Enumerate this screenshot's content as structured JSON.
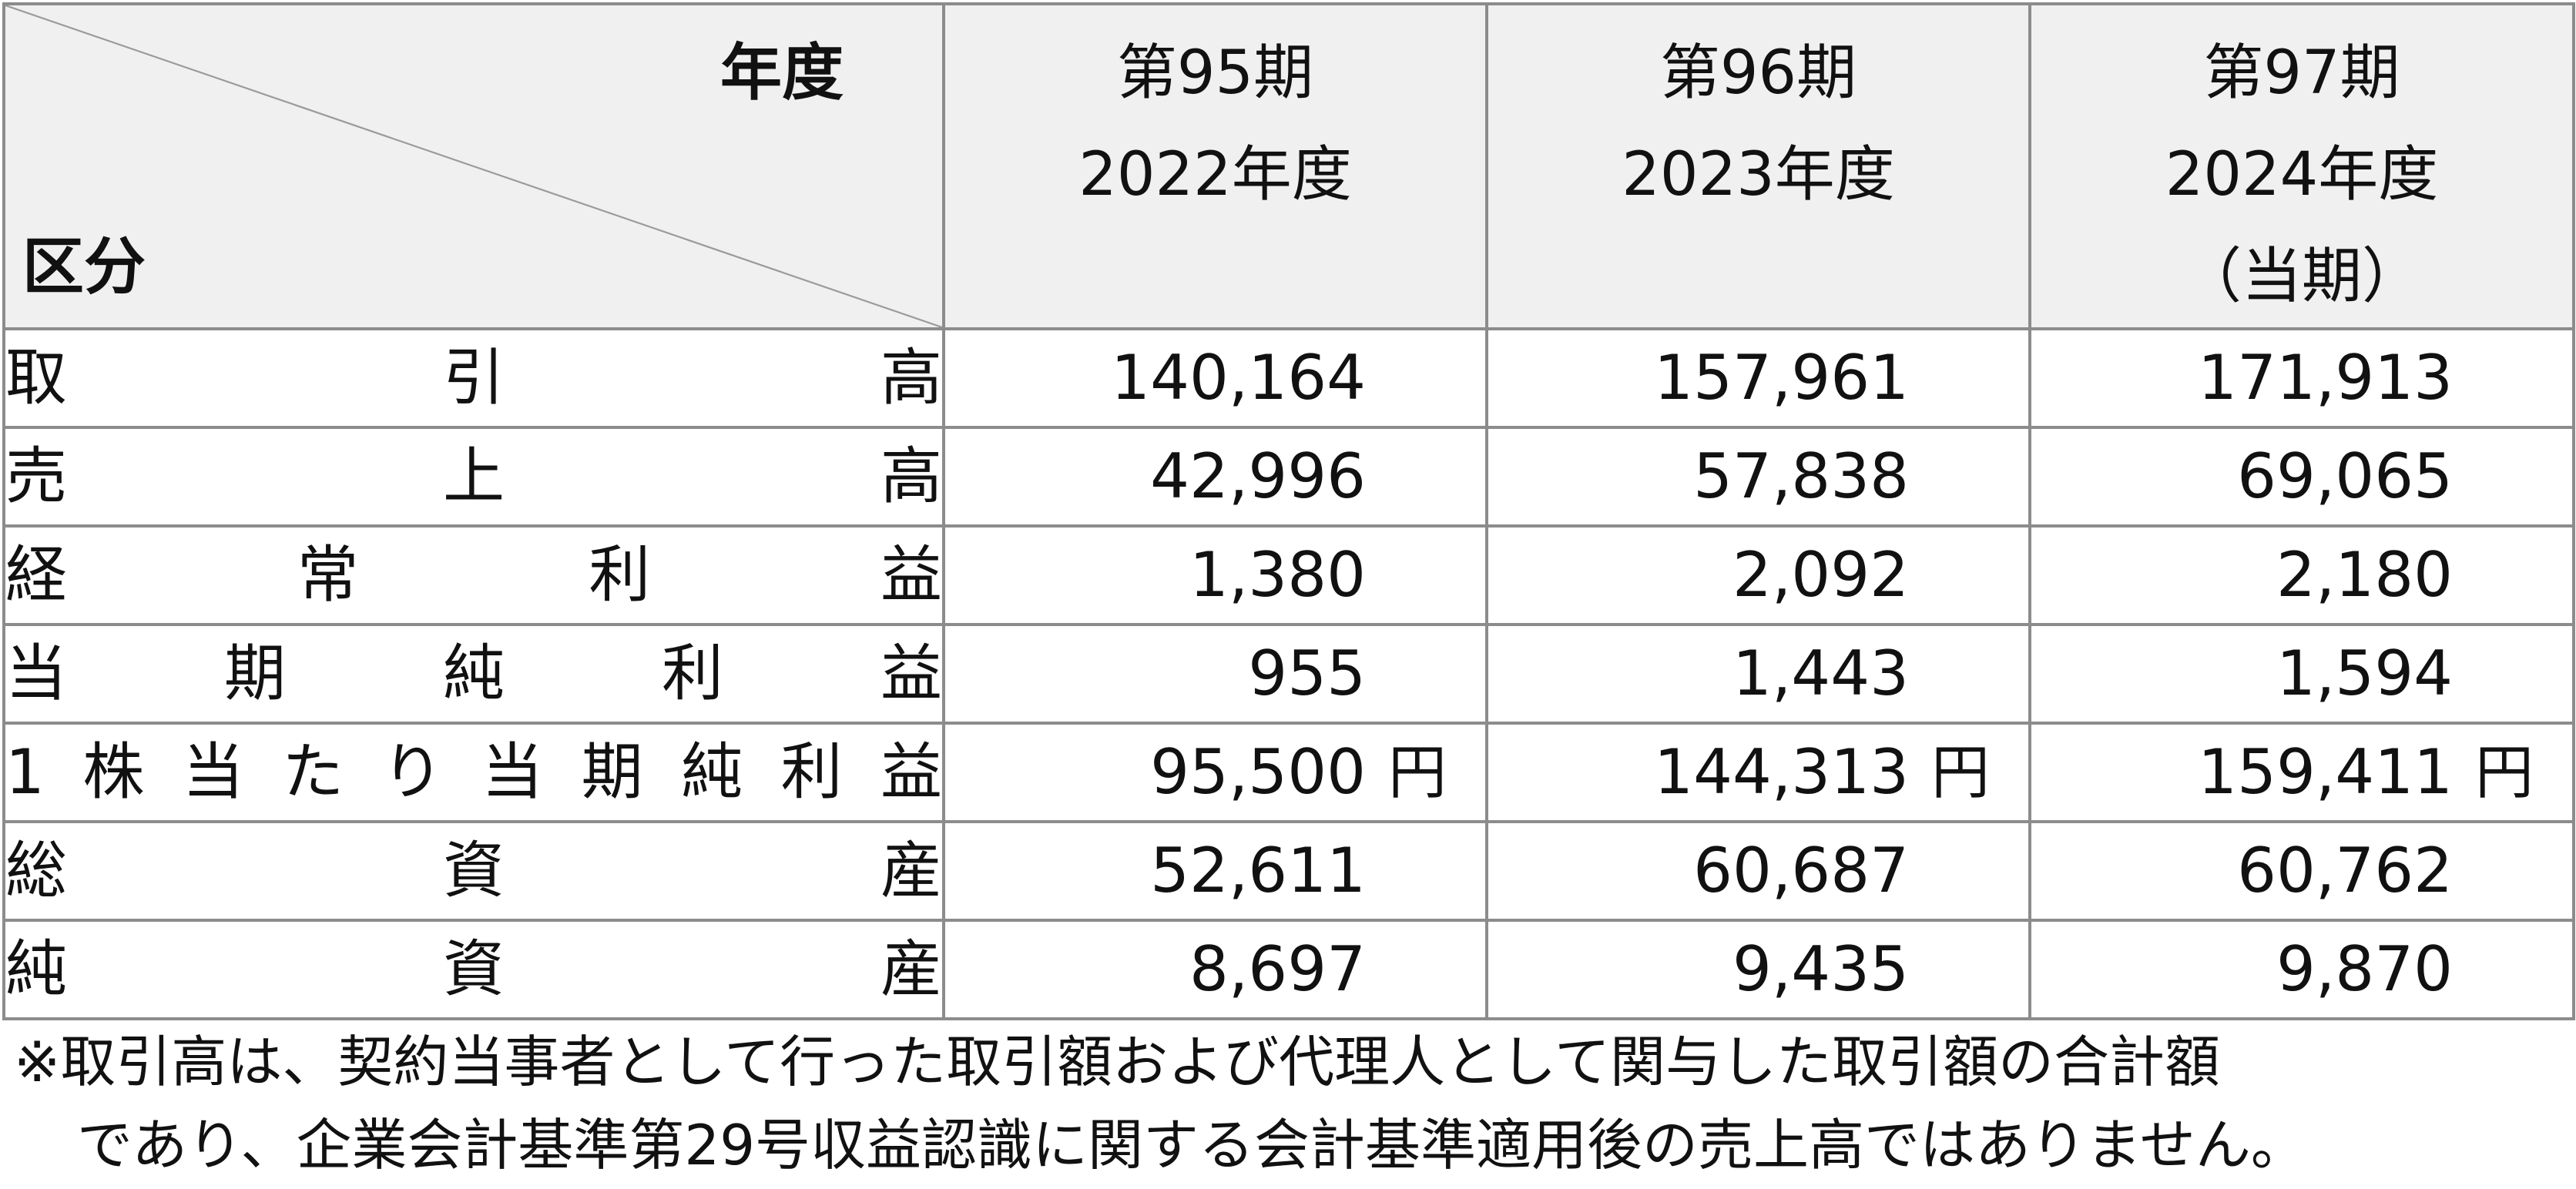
{
  "header": {
    "corner_top": "年度",
    "corner_bottom": "区分",
    "periods": [
      {
        "term": "第95期",
        "year": "2022年度",
        "note": ""
      },
      {
        "term": "第96期",
        "year": "2023年度",
        "note": ""
      },
      {
        "term": "第97期",
        "year": "2024年度",
        "note": "（当期）"
      }
    ]
  },
  "rows": [
    {
      "label": "取引高",
      "values": [
        "140,164",
        "157,961",
        "171,913"
      ],
      "unit": ""
    },
    {
      "label": "売上高",
      "values": [
        "42,996",
        "57,838",
        "69,065"
      ],
      "unit": ""
    },
    {
      "label": "経常利益",
      "values": [
        "1,380",
        "2,092",
        "2,180"
      ],
      "unit": ""
    },
    {
      "label": "当期純利益",
      "values": [
        "955",
        "1,443",
        "1,594"
      ],
      "unit": ""
    },
    {
      "label": "1株当たり当期純利益",
      "values": [
        "95,500",
        "144,313",
        "159,411"
      ],
      "unit": "円"
    },
    {
      "label": "総資産",
      "values": [
        "52,611",
        "60,687",
        "60,762"
      ],
      "unit": ""
    },
    {
      "label": "純資産",
      "values": [
        "8,697",
        "9,435",
        "9,870"
      ],
      "unit": ""
    }
  ],
  "footnote": {
    "line1": "※取引高は、契約当事者として行った取引額および代理人として関与した取引額の合計額",
    "line2": "であり、企業会計基準第29号収益認識に関する会計基準適用後の売上高ではありません。"
  }
}
